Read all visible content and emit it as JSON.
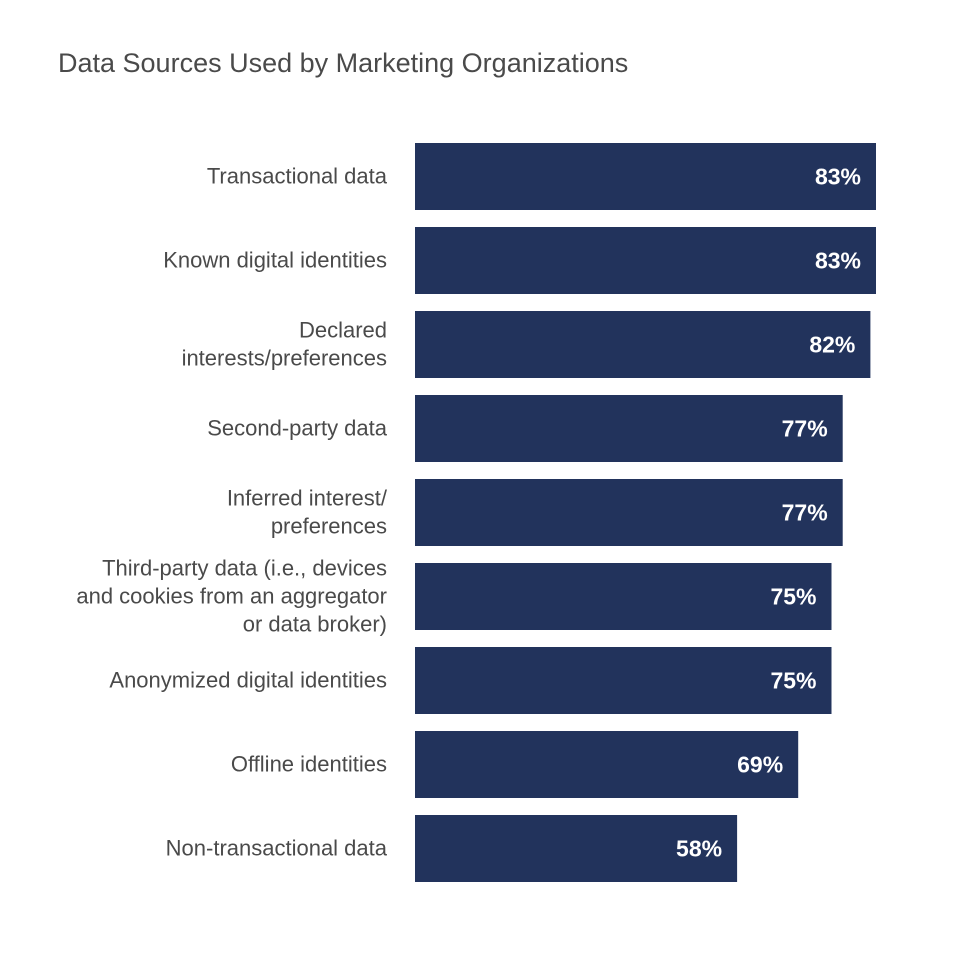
{
  "chart_data": {
    "type": "bar",
    "orientation": "horizontal",
    "title": "Data Sources Used by Marketing Organizations",
    "categories": [
      [
        "Transactional data"
      ],
      [
        "Known digital identities"
      ],
      [
        "Declared",
        "interests/preferences"
      ],
      [
        "Second-party data"
      ],
      [
        "Inferred interest/",
        "preferences"
      ],
      [
        "Third-party data (i.e., devices",
        "and cookies from an aggregator",
        "or data broker)"
      ],
      [
        "Anonymized digital identities"
      ],
      [
        "Offline identities"
      ],
      [
        "Non-transactional data"
      ]
    ],
    "values": [
      83,
      83,
      82,
      77,
      77,
      75,
      75,
      69,
      58
    ],
    "value_labels": [
      "83%",
      "83%",
      "82%",
      "77%",
      "77%",
      "75%",
      "75%",
      "69%",
      "58%"
    ],
    "xlim": [
      0,
      100
    ],
    "grid": false,
    "legend": "none",
    "bar_color": "#22335c"
  }
}
